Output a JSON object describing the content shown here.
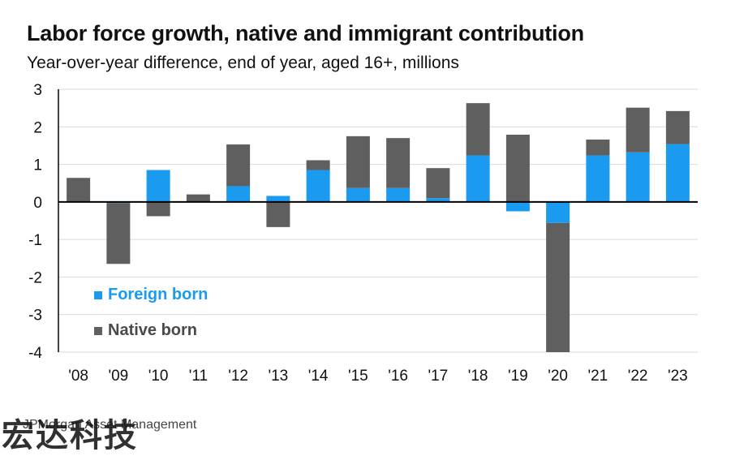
{
  "title": "Labor force growth, native and immigrant contribution",
  "subtitle": "Year-over-year difference, end of year, aged 16+, millions",
  "source": "JPMorgan Asset Management",
  "watermark": "宏达科技",
  "colors": {
    "foreign": "#1a9bf0",
    "native": "#5f5f5f",
    "grid": "#d9d9d9",
    "axis": "#000000"
  },
  "chart_data": {
    "type": "bar",
    "stacked": true,
    "title": "Labor force growth, native and immigrant contribution",
    "subtitle": "Year-over-year difference, end of year, aged 16+, millions",
    "categories": [
      "'08",
      "'09",
      "'10",
      "'11",
      "'12",
      "'13",
      "'14",
      "'15",
      "'16",
      "'17",
      "'18",
      "'19",
      "'20",
      "'21",
      "'22",
      "'23"
    ],
    "ylim": [
      -4,
      3
    ],
    "yticks": [
      3,
      2,
      1,
      0,
      -1,
      -2,
      -3,
      -4
    ],
    "grid": true,
    "legend_position": "bottom-left",
    "series": [
      {
        "name": "Foreign born",
        "color": "#1a9bf0",
        "values": [
          0.02,
          -0.03,
          0.85,
          0.01,
          0.42,
          0.16,
          0.85,
          0.37,
          0.37,
          0.1,
          1.24,
          -0.25,
          -0.56,
          1.24,
          1.32,
          1.54
        ]
      },
      {
        "name": "Native born",
        "color": "#5f5f5f",
        "values": [
          0.62,
          -1.62,
          -0.38,
          0.19,
          1.11,
          -0.67,
          0.26,
          1.38,
          1.33,
          0.8,
          1.39,
          1.79,
          -3.44,
          0.42,
          1.19,
          0.88
        ]
      }
    ]
  }
}
